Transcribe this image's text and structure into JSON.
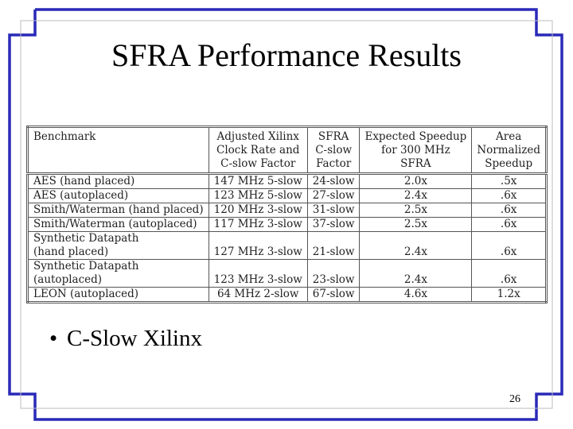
{
  "slide": {
    "title": "SFRA Performance Results",
    "bullet": "C-Slow Xilinx",
    "page_number": "26",
    "border_color": "#2929b8"
  },
  "table": {
    "headers": [
      [
        "Benchmark"
      ],
      [
        "Adjusted Xilinx",
        "Clock Rate and",
        "C-slow Factor"
      ],
      [
        "SFRA",
        "C-slow",
        "Factor"
      ],
      [
        "Expected Speedup",
        "for 300 MHz",
        "SFRA"
      ],
      [
        "Area",
        "Normalized",
        "Speedup"
      ]
    ],
    "rows": [
      {
        "benchmark": [
          "AES (hand placed)"
        ],
        "clock": "147 MHz 5-slow",
        "sfra": "24-slow",
        "speedup": "2.0x",
        "area": ".5x"
      },
      {
        "benchmark": [
          "AES (autoplaced)"
        ],
        "clock": "123 MHz 5-slow",
        "sfra": "27-slow",
        "speedup": "2.4x",
        "area": ".6x"
      },
      {
        "benchmark": [
          "Smith/Waterman (hand placed)"
        ],
        "clock": "120 MHz 3-slow",
        "sfra": "31-slow",
        "speedup": "2.5x",
        "area": ".6x"
      },
      {
        "benchmark": [
          "Smith/Waterman (autoplaced)"
        ],
        "clock": "117 MHz 3-slow",
        "sfra": "37-slow",
        "speedup": "2.5x",
        "area": ".6x"
      },
      {
        "benchmark": [
          "Synthetic Datapath",
          "(hand placed)"
        ],
        "clock": "127 MHz 3-slow",
        "sfra": "21-slow",
        "speedup": "2.4x",
        "area": ".6x"
      },
      {
        "benchmark": [
          "Synthetic Datapath",
          "(autoplaced)"
        ],
        "clock": "123 MHz 3-slow",
        "sfra": "23-slow",
        "speedup": "2.4x",
        "area": ".6x"
      },
      {
        "benchmark": [
          "LEON (autoplaced)"
        ],
        "clock": "64 MHz 2-slow",
        "sfra": "67-slow",
        "speedup": "4.6x",
        "area": "1.2x"
      }
    ]
  }
}
